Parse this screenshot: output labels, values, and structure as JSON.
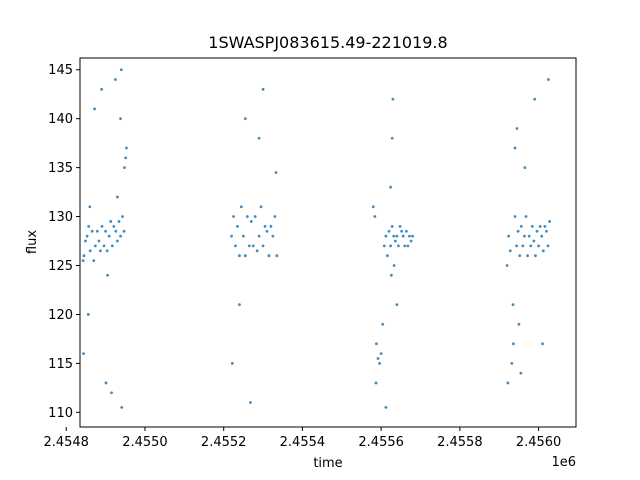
{
  "chart_data": {
    "type": "scatter",
    "title": "1SWASPJ083615.49-221019.8",
    "xlabel": "time",
    "ylabel": "flux",
    "x_offset_label": "1e6",
    "xlim": [
      2454835,
      2456095
    ],
    "ylim": [
      108.5,
      146.2
    ],
    "x_ticks": [
      2454800,
      2455000,
      2455200,
      2455400,
      2455600,
      2455800,
      2456000
    ],
    "x_tick_labels": [
      "2.4548",
      "2.4550",
      "2.4552",
      "2.4554",
      "2.4556",
      "2.4558",
      "2.4560"
    ],
    "y_ticks": [
      110,
      115,
      120,
      125,
      130,
      135,
      140,
      145
    ],
    "y_tick_labels": [
      "110",
      "115",
      "120",
      "125",
      "130",
      "135",
      "140",
      "145"
    ],
    "grid": false,
    "marker_color": "#1f77b4",
    "series": [
      {
        "x": [
          2454843,
          2454845,
          2454849,
          2454853,
          2454857,
          2454861,
          2454866,
          2454870,
          2454874,
          2454879,
          2454883,
          2454887,
          2454891,
          2454896,
          2454900,
          2454904,
          2454909,
          2454913,
          2454917,
          2454921,
          2454926,
          2454930,
          2454934,
          2454938,
          2454943,
          2454947,
          2454951,
          2454953,
          2454844,
          2454860,
          2454872,
          2454890,
          2454905,
          2454915,
          2454925,
          2454940,
          2454948,
          2454856,
          2454901,
          2454930,
          2454941,
          2454938,
          2455220,
          2455225,
          2455230,
          2455235,
          2455240,
          2455245,
          2455250,
          2455255,
          2455260,
          2455265,
          2455270,
          2455275,
          2455280,
          2455285,
          2455290,
          2455295,
          2455300,
          2455305,
          2455310,
          2455315,
          2455320,
          2455325,
          2455330,
          2455335,
          2455222,
          2455240,
          2455255,
          2455268,
          2455290,
          2455300,
          2455333,
          2455580,
          2455584,
          2455588,
          2455592,
          2455596,
          2455600,
          2455604,
          2455608,
          2455612,
          2455616,
          2455620,
          2455624,
          2455628,
          2455632,
          2455636,
          2455640,
          2455644,
          2455648,
          2455652,
          2455656,
          2455660,
          2455664,
          2455668,
          2455672,
          2455676,
          2455680,
          2455624,
          2455628,
          2455630,
          2455626,
          2455633,
          2455587,
          2455612,
          2455640,
          2455920,
          2455924,
          2455928,
          2455932,
          2455936,
          2455940,
          2455944,
          2455948,
          2455952,
          2455956,
          2455960,
          2455964,
          2455968,
          2455972,
          2455976,
          2455980,
          2455984,
          2455988,
          2455992,
          2455996,
          2456000,
          2456004,
          2456008,
          2456012,
          2456016,
          2456020,
          2456024,
          2456028,
          2455922,
          2455935,
          2455940,
          2455945,
          2455950,
          2455955,
          2455965,
          2455990,
          2456010,
          2456025
        ],
        "y": [
          125.5,
          126,
          127.5,
          128,
          129,
          126.5,
          128.5,
          125.5,
          127,
          128.5,
          127.5,
          126.5,
          129,
          127,
          128.5,
          126.5,
          128,
          129.5,
          127,
          129,
          128.5,
          127.5,
          129.5,
          128,
          130,
          128.5,
          136,
          137,
          116,
          131,
          141,
          143,
          124,
          112,
          144,
          145,
          135,
          120,
          113,
          132,
          110.5,
          140,
          128,
          130,
          127,
          129,
          126,
          131,
          128,
          126,
          130,
          127,
          129.5,
          127,
          130,
          126.5,
          128,
          131,
          127,
          129,
          128.5,
          126,
          129,
          128,
          130,
          126,
          115,
          121,
          140,
          111,
          138,
          143,
          134.5,
          131,
          130,
          117,
          115.5,
          115,
          116,
          119,
          127,
          128,
          126,
          128.5,
          127,
          129,
          128,
          127.5,
          128,
          127,
          129,
          128.5,
          128,
          127,
          128.5,
          127,
          128,
          127.5,
          128,
          133,
          138,
          142,
          124,
          125,
          113,
          110.5,
          121,
          125,
          128,
          126.5,
          115,
          117,
          130,
          127,
          128.5,
          126,
          129,
          127,
          128,
          130,
          126,
          128,
          127,
          129,
          127.5,
          126,
          128.5,
          127,
          129,
          128,
          126.5,
          129,
          128.5,
          127,
          129.5,
          113,
          121,
          137,
          139,
          119,
          114,
          135,
          142,
          117,
          144
        ]
      }
    ]
  }
}
